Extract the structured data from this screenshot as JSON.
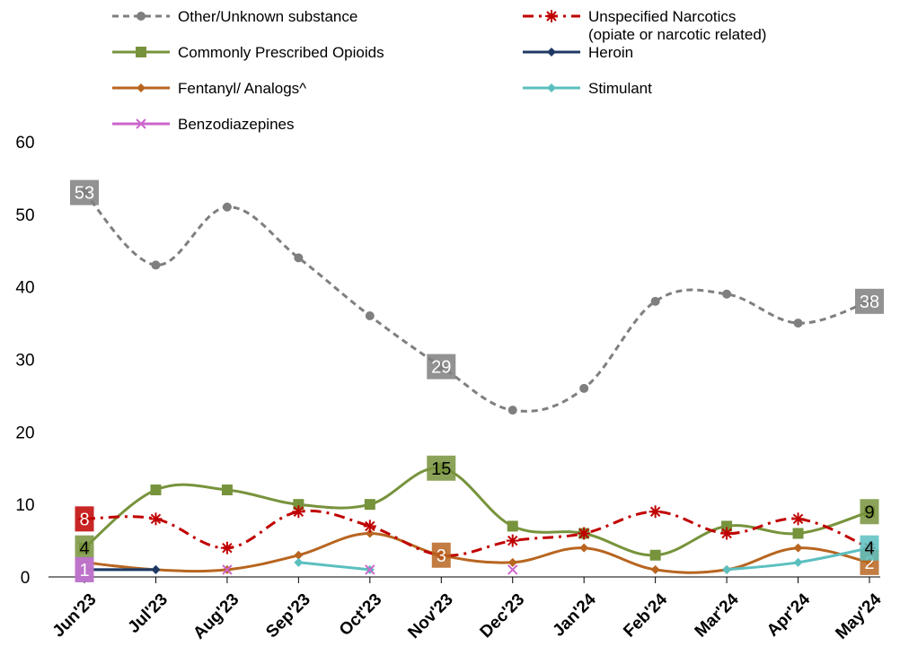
{
  "chart_data": {
    "type": "line",
    "title": "",
    "xlabel": "",
    "ylabel": "",
    "ylim": [
      0,
      60
    ],
    "yticks": [
      0,
      10,
      20,
      30,
      40,
      50,
      60
    ],
    "grid": false,
    "legend_position": "top",
    "categories": [
      "Jun'23",
      "Jul'23",
      "Aug'23",
      "Sep'23",
      "Oct'23",
      "Nov'23",
      "Dec'23",
      "Jan'24",
      "Feb'24",
      "Mar'24",
      "Apr'24",
      "May'24"
    ],
    "series": [
      {
        "name": "Other/Unknown substance",
        "color": "#7f7f7f",
        "dash": "dashed",
        "marker": "circle",
        "values": [
          53,
          43,
          51,
          44,
          36,
          29,
          23,
          26,
          38,
          39,
          35,
          38
        ],
        "labels": [
          {
            "i": 0,
            "text": "53"
          },
          {
            "i": 5,
            "text": "29"
          },
          {
            "i": 11,
            "text": "38"
          }
        ]
      },
      {
        "name": "Unspecified Narcotics\n(opiate or narcotic related)",
        "legend_lines": [
          "Unspecified Narcotics",
          "(opiate or narcotic related)"
        ],
        "color": "#c00000",
        "dash": "dashdot",
        "marker": "star",
        "values": [
          8,
          8,
          4,
          9,
          7,
          3,
          5,
          6,
          9,
          6,
          8,
          4
        ],
        "labels": [
          {
            "i": 0,
            "text": "8"
          }
        ]
      },
      {
        "name": "Commonly Prescribed Opioids",
        "color": "#77933c",
        "dash": "solid",
        "marker": "square",
        "values": [
          4,
          12,
          12,
          10,
          10,
          15,
          7,
          6,
          3,
          7,
          6,
          9
        ],
        "labels": [
          {
            "i": 0,
            "text": "4"
          },
          {
            "i": 5,
            "text": "15"
          },
          {
            "i": 11,
            "text": "9"
          }
        ]
      },
      {
        "name": "Heroin",
        "color": "#1f3864",
        "dash": "solid",
        "marker": "diamond",
        "values": [
          1,
          1,
          null,
          null,
          null,
          null,
          null,
          null,
          null,
          null,
          null,
          null
        ],
        "labels": []
      },
      {
        "name": "Fentanyl/ Analogs^",
        "color": "#b86520",
        "dash": "solid",
        "marker": "diamond",
        "values": [
          2,
          1,
          1,
          3,
          6,
          3,
          2,
          4,
          1,
          1,
          4,
          2
        ],
        "labels": [
          {
            "i": 5,
            "text": "3"
          },
          {
            "i": 11,
            "text": "2"
          }
        ]
      },
      {
        "name": "Stimulant",
        "color": "#5bbfbf",
        "dash": "solid",
        "marker": "diamond",
        "values": [
          1,
          1,
          null,
          2,
          1,
          null,
          null,
          null,
          null,
          1,
          2,
          4
        ],
        "labels": [
          {
            "i": 0,
            "text": "1"
          },
          {
            "i": 11,
            "text": "4"
          }
        ]
      },
      {
        "name": "Benzodiazepines",
        "color": "#cc66cc",
        "dash": "solid",
        "marker": "x",
        "values": [
          1,
          null,
          1,
          null,
          1,
          null,
          1,
          null,
          null,
          null,
          null,
          null
        ],
        "labels": [
          {
            "i": 0,
            "text": "1"
          }
        ]
      }
    ]
  }
}
